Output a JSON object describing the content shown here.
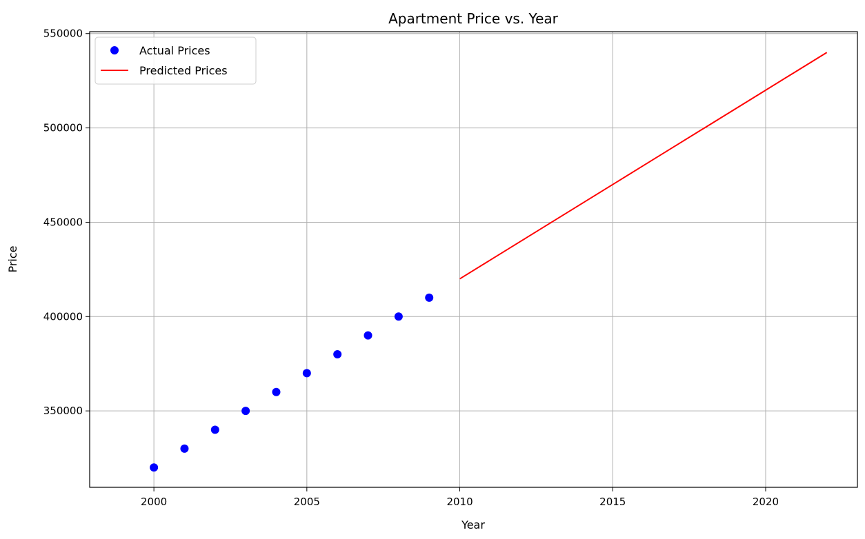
{
  "chart_data": {
    "type": "scatter",
    "title": "Apartment Price vs. Year",
    "xlabel": "Year",
    "ylabel": "Price",
    "xlim": [
      1997.9,
      2023.0
    ],
    "ylim": [
      309500,
      551000
    ],
    "x_ticks": [
      2000,
      2005,
      2010,
      2015,
      2020
    ],
    "y_ticks": [
      350000,
      400000,
      450000,
      500000,
      550000
    ],
    "grid": true,
    "legend_position": "top-left",
    "series": [
      {
        "name": "Actual Prices",
        "kind": "scatter",
        "color": "#0000ff",
        "x": [
          2000,
          2001,
          2002,
          2003,
          2004,
          2005,
          2006,
          2007,
          2008,
          2009
        ],
        "y": [
          320000,
          330000,
          340000,
          350000,
          360000,
          370000,
          380000,
          390000,
          400000,
          410000
        ]
      },
      {
        "name": "Predicted Prices",
        "kind": "line",
        "color": "#ff0000",
        "x": [
          2010,
          2011,
          2012,
          2013,
          2014,
          2015,
          2016,
          2017,
          2018,
          2019,
          2020,
          2021,
          2022
        ],
        "y": [
          420000,
          430000,
          440000,
          450000,
          460000,
          470000,
          480000,
          490000,
          500000,
          510000,
          520000,
          530000,
          540000
        ]
      }
    ]
  }
}
